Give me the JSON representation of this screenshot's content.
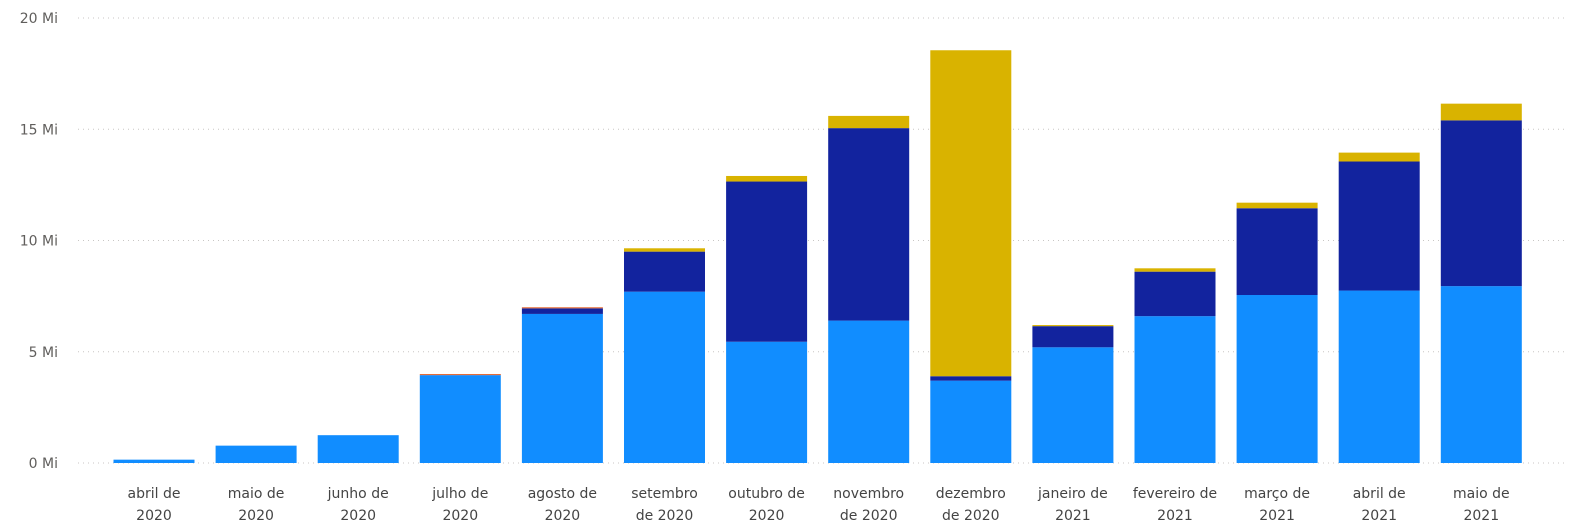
{
  "chart_data": {
    "type": "bar",
    "stacked": true,
    "categories": [
      [
        "abril de",
        "2020"
      ],
      [
        "maio de",
        "2020"
      ],
      [
        "junho de",
        "2020"
      ],
      [
        "julho de",
        "2020"
      ],
      [
        "agosto de",
        "2020"
      ],
      [
        "setembro",
        "de 2020"
      ],
      [
        "outubro de",
        "2020"
      ],
      [
        "novembro",
        "de 2020"
      ],
      [
        "dezembro",
        "de 2020"
      ],
      [
        "janeiro de",
        "2021"
      ],
      [
        "fevereiro de",
        "2021"
      ],
      [
        "março de",
        "2021"
      ],
      [
        "abril de",
        "2021"
      ],
      [
        "maio de",
        "2021"
      ]
    ],
    "series": [
      {
        "color": "#118dff",
        "values": [
          0.15,
          0.78,
          1.25,
          3.95,
          6.7,
          7.7,
          5.45,
          6.4,
          3.7,
          5.2,
          6.6,
          7.55,
          7.75,
          7.95
        ]
      },
      {
        "color": "#12239e",
        "values": [
          0,
          0,
          0,
          0,
          0.25,
          1.8,
          7.2,
          8.65,
          0.2,
          0.95,
          2.0,
          3.9,
          5.8,
          7.45
        ]
      },
      {
        "color": "#d9b300",
        "values": [
          0,
          0,
          0,
          0,
          0,
          0.15,
          0.25,
          0.55,
          14.65,
          0.05,
          0.15,
          0.25,
          0.4,
          0.75
        ]
      },
      {
        "color": "#e66c37",
        "values": [
          0,
          0,
          0,
          0.05,
          0.05,
          0,
          0,
          0,
          0,
          0,
          0,
          0,
          0,
          0
        ]
      }
    ],
    "y_ticks": [
      {
        "value": 0,
        "label": "0 Mi"
      },
      {
        "value": 5,
        "label": "5 Mi"
      },
      {
        "value": 10,
        "label": "10 Mi"
      },
      {
        "value": 15,
        "label": "15 Mi"
      },
      {
        "value": 20,
        "label": "20 Mi"
      }
    ],
    "ylim": [
      0,
      20
    ],
    "grid": true,
    "title": "",
    "xlabel": "",
    "ylabel": ""
  }
}
